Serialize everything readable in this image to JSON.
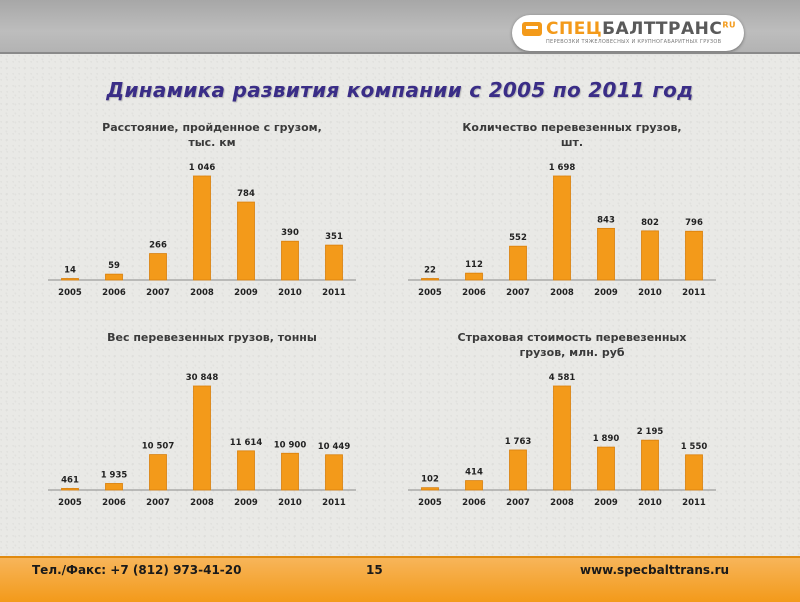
{
  "header": {
    "logo_name_part1": "СПЕЦ",
    "logo_name_part2": "БАЛТТРАНС",
    "logo_sup": "RU",
    "logo_tagline": "ПЕРЕВОЗКИ ТЯЖЕЛОВЕСНЫХ И КРУПНОГАБАРИТНЫХ ГРУЗОВ"
  },
  "page_title": "Динамика развития компании с 2005 по 2011 год",
  "footer": {
    "phone": "Тел./Факс: +7 (812) 973-41-20",
    "page_number": "15",
    "website": "www.specbalttrans.ru"
  },
  "colors": {
    "bar": "#f39a1a",
    "bar_dark": "#d97f0a",
    "axis": "#8a8a8a"
  },
  "chart_data": [
    {
      "type": "bar",
      "title_lines": [
        "Расстояние, пройденное с грузом,",
        "тыс. км"
      ],
      "categories": [
        "2005",
        "2006",
        "2007",
        "2008",
        "2009",
        "2010",
        "2011"
      ],
      "values": [
        14,
        59,
        266,
        1046,
        784,
        390,
        351
      ],
      "labels": [
        "14",
        "59",
        "266",
        "1 046",
        "784",
        "390",
        "351"
      ],
      "ylim": [
        0,
        1046
      ]
    },
    {
      "type": "bar",
      "title_lines": [
        "Количество перевезенных грузов,",
        "шт."
      ],
      "categories": [
        "2005",
        "2006",
        "2007",
        "2008",
        "2009",
        "2010",
        "2011"
      ],
      "values": [
        22,
        112,
        552,
        1698,
        843,
        802,
        796
      ],
      "labels": [
        "22",
        "112",
        "552",
        "1 698",
        "843",
        "802",
        "796"
      ],
      "ylim": [
        0,
        1698
      ]
    },
    {
      "type": "bar",
      "title_lines": [
        "Вес перевезенных грузов, тонны"
      ],
      "categories": [
        "2005",
        "2006",
        "2007",
        "2008",
        "2009",
        "2010",
        "2011"
      ],
      "values": [
        461,
        1935,
        10507,
        30848,
        11614,
        10900,
        10449
      ],
      "labels": [
        "461",
        "1 935",
        "10 507",
        "30 848",
        "11 614",
        "10 900",
        "10 449"
      ],
      "ylim": [
        0,
        30848
      ]
    },
    {
      "type": "bar",
      "title_lines": [
        "Страховая стоимость перевезенных",
        "грузов, млн. руб"
      ],
      "categories": [
        "2005",
        "2006",
        "2007",
        "2008",
        "2009",
        "2010",
        "2011"
      ],
      "values": [
        102,
        414,
        1763,
        4581,
        1890,
        2195,
        1550
      ],
      "labels": [
        "102",
        "414",
        "1 763",
        "4 581",
        "1 890",
        "2 195",
        "1 550"
      ],
      "ylim": [
        0,
        4581
      ]
    }
  ]
}
